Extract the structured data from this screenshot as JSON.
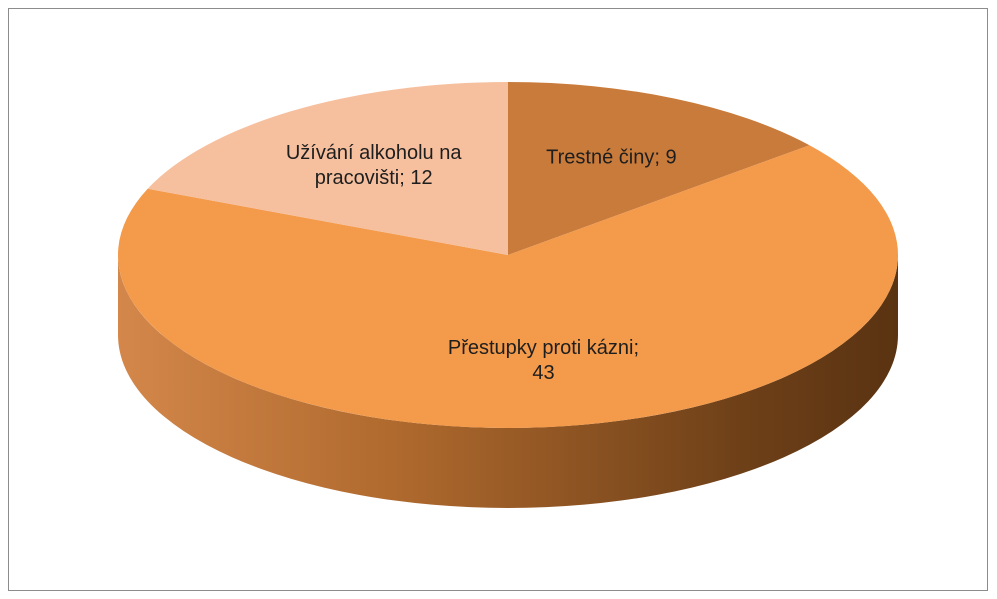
{
  "chart_data": {
    "type": "pie",
    "values": [
      9,
      43,
      12
    ],
    "value_labels": [
      "Trestné činy; 9",
      "Přestupky proti kázni; 43",
      "Užívání alkoholu na pracovišti; 12"
    ],
    "colors": [
      "#c97b3b",
      "#f39a4b",
      "#f6c09f"
    ],
    "start_angle": 0,
    "direction": "clockwise",
    "three_d": true
  }
}
